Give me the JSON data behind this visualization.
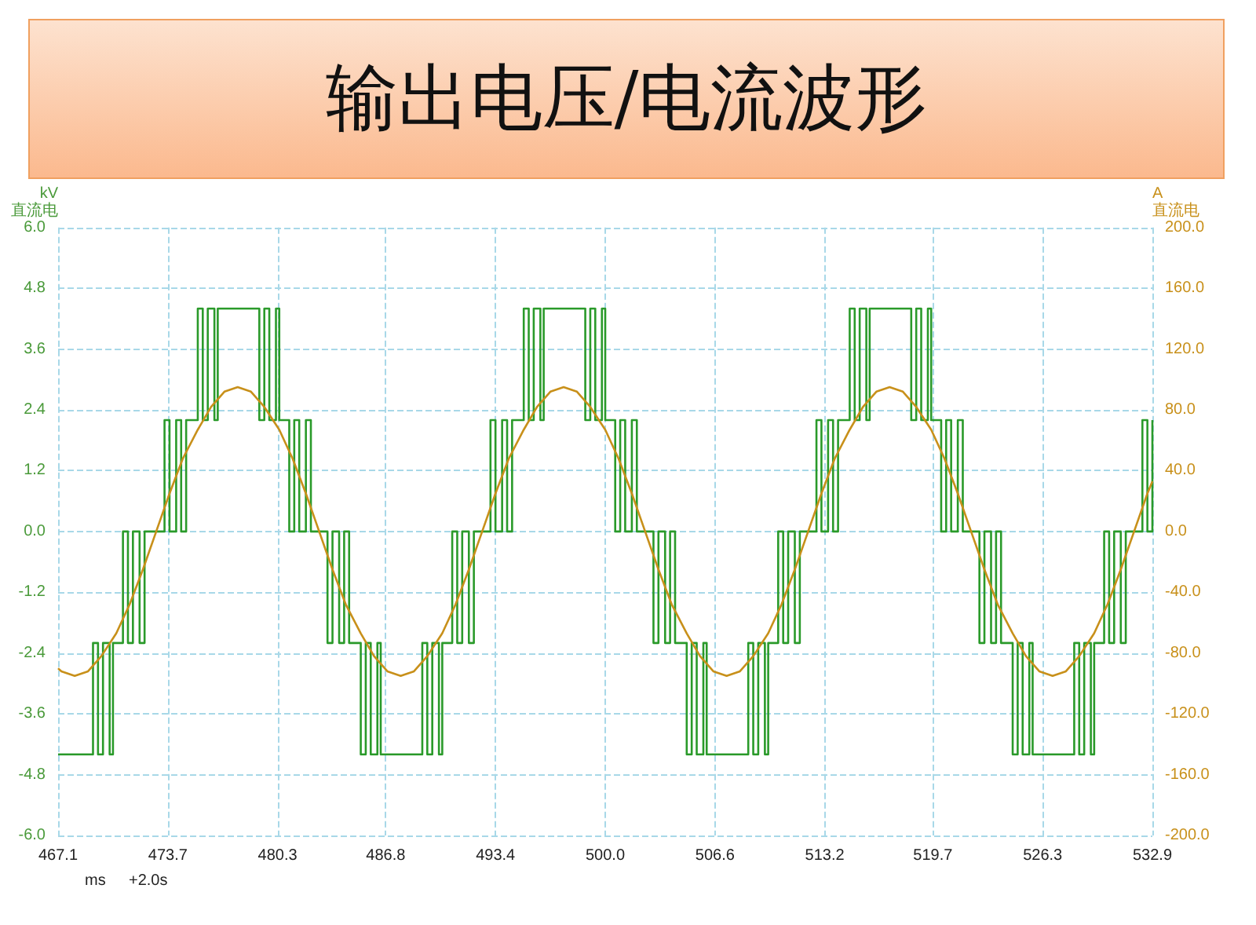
{
  "chart_data": {
    "type": "step",
    "title": "输出电压/电流波形",
    "xlabel": "ms",
    "ylabel": "kV\n直流电",
    "y2label": "A\n直流电",
    "annotations": [
      "+2.0s"
    ],
    "xlim": [
      467.1,
      532.9
    ],
    "xticks": [
      467.1,
      473.7,
      480.3,
      486.8,
      493.4,
      {
        "value": 500.0,
        "label": "500.0"
      },
      506.6,
      513.2,
      519.7,
      526.3,
      532.9
    ],
    "ylim": [
      -6.0,
      6.0
    ],
    "yticks": [
      {
        "value": -6,
        "label": "-6.0"
      },
      -4.8,
      -3.6,
      -2.4,
      -1.2,
      {
        "value": 0,
        "label": "0.0"
      },
      1.2,
      2.4,
      3.6,
      4.8,
      {
        "value": 6,
        "label": "6.0"
      }
    ],
    "y2lim": [
      -200.0,
      200.0
    ],
    "y2ticks": [
      {
        "value": -200,
        "label": "-200.0"
      },
      {
        "value": -160,
        "label": "-160.0"
      },
      {
        "value": -120,
        "label": "-120.0"
      },
      {
        "value": -80,
        "label": "-80.0"
      },
      {
        "value": -40,
        "label": "-40.0"
      },
      {
        "value": 0,
        "label": "0.0"
      },
      {
        "value": 40,
        "label": "40.0"
      },
      {
        "value": 80,
        "label": "80.0"
      },
      {
        "value": 120,
        "label": "120.0"
      },
      {
        "value": 160,
        "label": "160.0"
      },
      {
        "value": 200,
        "label": "200.0"
      }
    ],
    "grid": true,
    "marker": "none",
    "line_style": "solid",
    "series": [
      {
        "color": "#2a9a2a",
        "x": [
          467.1,
          469.2,
          469.5,
          469.8,
          470.2,
          470.4,
          471.0,
          471.3,
          471.6,
          472.0,
          472.3,
          473.0,
          473.5,
          473.8,
          474.2,
          474.5,
          474.8,
          475.5,
          475.8,
          476.1,
          476.5,
          476.7,
          479.2,
          479.5,
          479.8,
          480.2,
          480.4,
          481.0,
          481.3,
          481.6,
          482.0,
          482.3,
          482.8,
          483.3,
          483.6,
          484.0,
          484.3,
          484.6,
          485.3,
          485.6,
          485.9,
          486.3,
          486.5,
          489.0,
          489.3,
          489.6,
          490.0,
          490.2,
          490.8,
          491.1,
          491.4,
          491.8,
          492.1,
          492.6,
          493.1,
          493.4,
          493.8,
          494.1,
          494.4,
          495.1,
          495.4,
          495.7,
          496.1,
          496.3,
          498.8,
          499.1,
          499.4,
          499.8,
          500.0,
          500.6,
          500.9,
          501.2,
          501.6,
          501.9,
          502.4,
          502.9,
          503.2,
          503.6,
          503.9,
          504.2,
          504.9,
          505.2,
          505.5,
          505.9,
          506.1,
          508.6,
          508.9,
          509.2,
          509.6,
          509.8,
          510.4,
          510.7,
          511.0,
          511.4,
          511.7,
          512.2,
          512.7,
          513.0,
          513.4,
          513.7,
          514.0,
          514.7,
          515.0,
          515.3,
          515.7,
          515.9,
          518.4,
          518.7,
          519.0,
          519.4,
          519.6,
          520.2,
          520.5,
          520.8,
          521.2,
          521.5,
          522.0,
          522.5,
          522.8,
          523.2,
          523.5,
          523.8,
          524.5,
          524.8,
          525.1,
          525.5,
          525.7,
          528.2,
          528.5,
          528.8,
          529.2,
          529.4,
          530.0,
          530.3,
          530.6,
          531.0,
          531.3,
          531.8,
          532.3,
          532.6,
          532.9
        ],
        "values": [
          -4.4,
          -2.2,
          -4.4,
          -2.2,
          -4.4,
          -2.2,
          0,
          -2.2,
          0,
          -2.2,
          0,
          0,
          2.2,
          0,
          2.2,
          0,
          2.2,
          4.4,
          2.2,
          4.4,
          2.2,
          4.4,
          2.2,
          4.4,
          2.2,
          4.4,
          2.2,
          0,
          2.2,
          0,
          2.2,
          0,
          0,
          -2.2,
          0,
          -2.2,
          0,
          -2.2,
          -4.4,
          -2.2,
          -4.4,
          -2.2,
          -4.4,
          -2.2,
          -4.4,
          -2.2,
          -4.4,
          -2.2,
          0,
          -2.2,
          0,
          -2.2,
          0,
          0,
          2.2,
          0,
          2.2,
          0,
          2.2,
          4.4,
          2.2,
          4.4,
          2.2,
          4.4,
          2.2,
          4.4,
          2.2,
          4.4,
          2.2,
          0,
          2.2,
          0,
          2.2,
          0,
          0,
          -2.2,
          0,
          -2.2,
          0,
          -2.2,
          -4.4,
          -2.2,
          -4.4,
          -2.2,
          -4.4,
          -2.2,
          -4.4,
          -2.2,
          -4.4,
          -2.2,
          0,
          -2.2,
          0,
          -2.2,
          0,
          0,
          2.2,
          0,
          2.2,
          0,
          2.2,
          4.4,
          2.2,
          4.4,
          2.2,
          4.4,
          2.2,
          4.4,
          2.2,
          4.4,
          2.2,
          0,
          2.2,
          0,
          2.2,
          0,
          0,
          -2.2,
          0,
          -2.2,
          0,
          -2.2,
          -4.4,
          -2.2,
          -4.4,
          -2.2,
          -4.4,
          -2.2,
          -4.4,
          -2.2,
          -4.4,
          -2.2,
          0,
          -2.2,
          0,
          -2.2,
          0,
          0,
          2.2,
          0,
          2.2
        ]
      },
      {
        "type": "line",
        "axis": "y2",
        "color": "#c8901a",
        "x": [
          467.1,
          467.3,
          468.1,
          468.9,
          469.7,
          470.6,
          471.4,
          472.2,
          473.0,
          473.8,
          474.6,
          475.5,
          476.3,
          477.1,
          477.9,
          478.7,
          479.5,
          480.4,
          481.2,
          482.0,
          482.8,
          483.6,
          484.4,
          485.3,
          486.1,
          486.9,
          487.7,
          488.5,
          489.3,
          490.2,
          491.0,
          491.8,
          492.6,
          493.4,
          494.2,
          495.1,
          495.9,
          496.7,
          497.5,
          498.3,
          499.1,
          500.0,
          500.8,
          501.6,
          502.4,
          503.2,
          504.0,
          504.9,
          505.7,
          506.5,
          507.3,
          508.1,
          508.9,
          509.8,
          510.6,
          511.4,
          512.2,
          513.0,
          513.8,
          514.7,
          515.5,
          516.3,
          517.1,
          517.9,
          518.7,
          519.6,
          520.4,
          521.2,
          522.0,
          522.8,
          523.6,
          524.5,
          525.3,
          526.1,
          526.9,
          527.7,
          528.5,
          529.4,
          530.2,
          531.0,
          531.8,
          532.6,
          532.9
        ],
        "values": [
          -90,
          -92,
          -95,
          -92,
          -82,
          -67,
          -48,
          -25,
          0,
          25,
          48,
          67,
          82,
          92,
          95,
          92,
          82,
          67,
          48,
          25,
          0,
          -25,
          -48,
          -67,
          -82,
          -92,
          -95,
          -92,
          -82,
          -67,
          -48,
          -25,
          0,
          25,
          48,
          67,
          82,
          92,
          95,
          92,
          82,
          67,
          48,
          25,
          0,
          -25,
          -48,
          -67,
          -82,
          -92,
          -95,
          -92,
          -82,
          -67,
          -48,
          -25,
          0,
          25,
          48,
          67,
          82,
          92,
          95,
          92,
          82,
          67,
          48,
          25,
          0,
          -25,
          -48,
          -67,
          -82,
          -92,
          -95,
          -92,
          -82,
          -67,
          -48,
          -25,
          0,
          25,
          33
        ]
      }
    ]
  }
}
